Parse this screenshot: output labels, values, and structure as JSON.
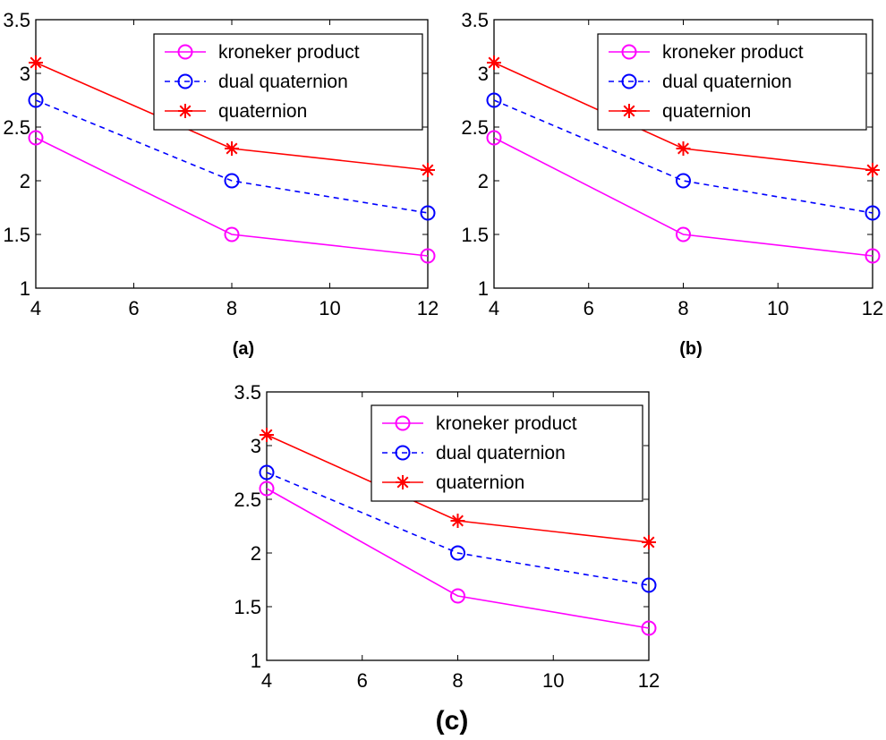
{
  "chart_data": [
    {
      "type": "line",
      "panel_label": "(a)",
      "xlim": [
        4,
        12
      ],
      "ylim": [
        1,
        3.5
      ],
      "x_ticks": [
        "4",
        "6",
        "8",
        "10",
        "12"
      ],
      "y_ticks": [
        "1",
        "1.5",
        "2",
        "2.5",
        "3",
        "3.5"
      ],
      "legend_position": "top-right",
      "grid": false,
      "series": [
        {
          "name": "kroneker product",
          "color": "#ff00ff",
          "line_style": "solid",
          "marker": "circle",
          "x": [
            4,
            8,
            12
          ],
          "y": [
            2.4,
            1.5,
            1.3
          ]
        },
        {
          "name": "dual quaternion",
          "color": "#0000ff",
          "line_style": "dashed",
          "marker": "circle",
          "x": [
            4,
            8,
            12
          ],
          "y": [
            2.75,
            2.0,
            1.7
          ]
        },
        {
          "name": "quaternion",
          "color": "#ff0000",
          "line_style": "solid",
          "marker": "star",
          "x": [
            4,
            8,
            12
          ],
          "y": [
            3.1,
            2.3,
            2.1
          ]
        }
      ]
    },
    {
      "type": "line",
      "panel_label": "(b)",
      "xlim": [
        4,
        12
      ],
      "ylim": [
        1,
        3.5
      ],
      "x_ticks": [
        "4",
        "6",
        "8",
        "10",
        "12"
      ],
      "y_ticks": [
        "1",
        "1.5",
        "2",
        "2.5",
        "3",
        "3.5"
      ],
      "legend_position": "top-right",
      "grid": false,
      "series": [
        {
          "name": "kroneker product",
          "color": "#ff00ff",
          "line_style": "solid",
          "marker": "circle",
          "x": [
            4,
            8,
            12
          ],
          "y": [
            2.4,
            1.5,
            1.3
          ]
        },
        {
          "name": "dual quaternion",
          "color": "#0000ff",
          "line_style": "dashed",
          "marker": "circle",
          "x": [
            4,
            8,
            12
          ],
          "y": [
            2.75,
            2.0,
            1.7
          ]
        },
        {
          "name": "quaternion",
          "color": "#ff0000",
          "line_style": "solid",
          "marker": "star",
          "x": [
            4,
            8,
            12
          ],
          "y": [
            3.1,
            2.3,
            2.1
          ]
        }
      ]
    },
    {
      "type": "line",
      "panel_label": "(c)",
      "xlim": [
        4,
        12
      ],
      "ylim": [
        1,
        3.5
      ],
      "x_ticks": [
        "4",
        "6",
        "8",
        "10",
        "12"
      ],
      "y_ticks": [
        "1",
        "1.5",
        "2",
        "2.5",
        "3",
        "3.5"
      ],
      "legend_position": "top-right",
      "grid": false,
      "series": [
        {
          "name": "kroneker product",
          "color": "#ff00ff",
          "line_style": "solid",
          "marker": "circle",
          "x": [
            4,
            8,
            12
          ],
          "y": [
            2.6,
            1.6,
            1.3
          ]
        },
        {
          "name": "dual quaternion",
          "color": "#0000ff",
          "line_style": "dashed",
          "marker": "circle",
          "x": [
            4,
            8,
            12
          ],
          "y": [
            2.75,
            2.0,
            1.7
          ]
        },
        {
          "name": "quaternion",
          "color": "#ff0000",
          "line_style": "solid",
          "marker": "star",
          "x": [
            4,
            8,
            12
          ],
          "y": [
            3.1,
            2.3,
            2.1
          ]
        }
      ]
    }
  ]
}
